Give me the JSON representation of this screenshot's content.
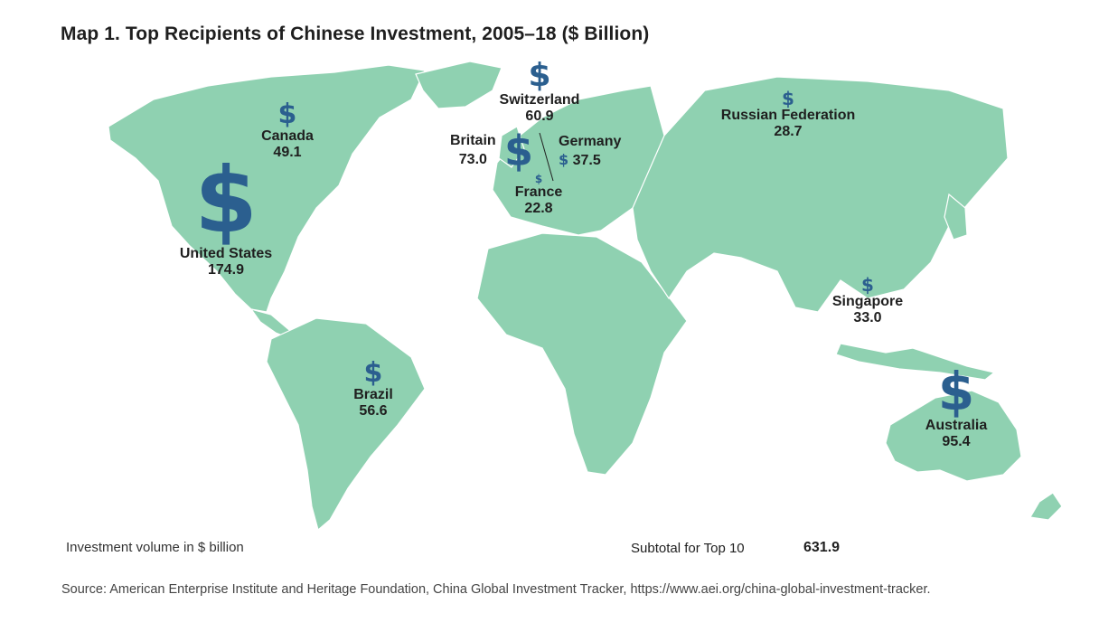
{
  "title": "Map 1. Top Recipients of Chinese Investment, 2005–18 ($ Billion)",
  "currency_symbol": "$",
  "colors": {
    "land": "#8fd1b1",
    "marker": "#2b5f8f",
    "text": "#1f1f1f"
  },
  "recipients": [
    {
      "country": "United States",
      "value": "174.9"
    },
    {
      "country": "Australia",
      "value": "95.4"
    },
    {
      "country": "Britain",
      "value": "73.0"
    },
    {
      "country": "Switzerland",
      "value": "60.9"
    },
    {
      "country": "Brazil",
      "value": "56.6"
    },
    {
      "country": "Canada",
      "value": "49.1"
    },
    {
      "country": "Germany",
      "value": "37.5"
    },
    {
      "country": "Singapore",
      "value": "33.0"
    },
    {
      "country": "Russian Federation",
      "value": "28.7"
    },
    {
      "country": "France",
      "value": "22.8"
    }
  ],
  "legend": "Investment volume in $ billion",
  "subtotal": {
    "label": "Subtotal for Top 10",
    "value": "631.9"
  },
  "source": "Source: American Enterprise Institute and Heritage Foundation, China Global Investment Tracker, https://www.aei.org/china-global-investment-tracker."
}
